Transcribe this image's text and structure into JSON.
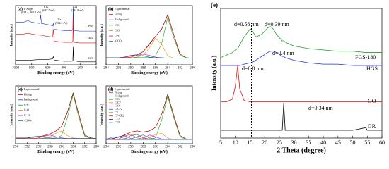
{
  "chart_data": [
    {
      "type": "line",
      "label": "(a)",
      "xlabel": "Binding energy (eV)",
      "ylabel": "Intensity (a.u.)",
      "xlim": [
        1000,
        0
      ],
      "ylim": [
        0,
        100
      ],
      "xticks": [
        1000,
        800,
        600,
        400,
        200,
        0
      ],
      "annotations": [
        "F Auger",
        "(834.4, 862.1 eV)",
        "F1s",
        "(687.7 eV)",
        "O1s",
        "(532.3 eV)",
        "C1s",
        "(284.8 eV)"
      ],
      "x": [
        1000,
        900,
        862,
        834,
        800,
        700,
        688,
        680,
        600,
        540,
        532,
        520,
        400,
        300,
        290,
        285,
        280,
        200,
        100,
        0
      ],
      "series": [
        {
          "name": "FGS",
          "color": "#1f2fd8",
          "values": [
            72,
            72,
            74,
            74,
            72,
            70,
            84,
            70,
            68,
            66,
            70,
            60,
            58,
            58,
            60,
            97,
            58,
            57,
            57,
            57
          ]
        },
        {
          "name": "HGS",
          "color": "#e01010",
          "values": [
            52,
            52,
            53,
            53,
            52,
            50,
            50,
            50,
            48,
            47,
            60,
            40,
            38,
            38,
            40,
            80,
            38,
            37,
            37,
            37
          ]
        },
        {
          "name": "GO",
          "color": "#000000",
          "values": [
            8,
            8,
            8,
            8,
            8,
            9,
            9,
            9,
            9,
            10,
            14,
            8,
            6,
            6,
            7,
            30,
            7,
            5,
            5,
            5
          ]
        }
      ]
    },
    {
      "type": "line",
      "label": "(b)",
      "xlabel": "Binding energy (eV)",
      "ylabel": "Intensity (a.u.)",
      "legend": true,
      "xlim": [
        294,
        280
      ],
      "ylim": [
        0,
        100
      ],
      "xticks": [
        294,
        292,
        290,
        288,
        286,
        284,
        282,
        280
      ],
      "x": [
        294,
        293,
        292,
        291,
        290,
        289,
        288,
        287,
        286,
        285,
        284,
        283,
        282,
        281,
        280
      ],
      "series": [
        {
          "name": "Experimental",
          "color": "#000000",
          "values": [
            12,
            12,
            12,
            13,
            15,
            17,
            22,
            35,
            48,
            60,
            85,
            50,
            18,
            12,
            11
          ]
        },
        {
          "name": "Fitting",
          "color": "#e01010",
          "values": [
            12,
            12,
            12,
            13,
            15,
            17,
            22,
            34,
            48,
            60,
            84,
            50,
            18,
            12,
            11
          ]
        },
        {
          "name": "Background",
          "color": "#1f2fd8",
          "values": [
            12,
            12,
            12,
            12,
            12,
            12,
            12,
            12,
            12,
            11,
            11,
            11,
            11,
            11,
            11
          ]
        },
        {
          "name": "C-C",
          "color": "#10a010",
          "values": [
            12,
            12,
            12,
            12,
            12,
            12,
            12,
            12,
            15,
            35,
            80,
            45,
            16,
            12,
            11
          ]
        },
        {
          "name": "C-O",
          "color": "#ff8000",
          "values": [
            12,
            12,
            12,
            12,
            12,
            13,
            16,
            28,
            45,
            35,
            15,
            11,
            11,
            11,
            11
          ]
        },
        {
          "name": "C=O",
          "color": "#d000d0",
          "values": [
            12,
            12,
            12,
            12,
            13,
            16,
            18,
            16,
            13,
            12,
            11,
            11,
            11,
            11,
            11
          ]
        },
        {
          "name": "-COO-",
          "color": "#008080",
          "values": [
            12,
            12,
            12,
            13,
            16,
            17,
            15,
            13,
            12,
            12,
            11,
            11,
            11,
            11,
            11
          ]
        }
      ]
    },
    {
      "type": "line",
      "label": "(c)",
      "xlabel": "Binding energy (eV)",
      "ylabel": "Intensity (a.u.)",
      "legend": true,
      "xlim": [
        294,
        280
      ],
      "ylim": [
        0,
        100
      ],
      "xticks": [
        294,
        292,
        290,
        288,
        286,
        284,
        282,
        280
      ],
      "x": [
        294,
        293,
        292,
        291,
        290,
        289,
        288,
        287,
        286,
        285,
        284,
        283,
        282,
        281,
        280
      ],
      "series": [
        {
          "name": "Experimental",
          "color": "#000000",
          "values": [
            10,
            10,
            10,
            11,
            12,
            14,
            17,
            22,
            30,
            55,
            88,
            50,
            15,
            10,
            9
          ]
        },
        {
          "name": "Fitting",
          "color": "#e01010",
          "values": [
            10,
            10,
            10,
            11,
            12,
            14,
            17,
            22,
            30,
            54,
            87,
            50,
            15,
            10,
            9
          ]
        },
        {
          "name": "Background",
          "color": "#1f2fd8",
          "values": [
            9,
            9,
            9,
            9,
            9,
            9,
            9,
            9,
            9,
            9,
            9,
            9,
            9,
            9,
            9
          ]
        },
        {
          "name": "C-C",
          "color": "#10a010",
          "values": [
            9,
            9,
            9,
            9,
            9,
            9,
            9,
            10,
            14,
            45,
            85,
            45,
            13,
            9,
            9
          ]
        },
        {
          "name": "C-O",
          "color": "#ff8000",
          "values": [
            9,
            9,
            9,
            9,
            9,
            10,
            12,
            18,
            22,
            14,
            10,
            9,
            9,
            9,
            9
          ]
        },
        {
          "name": "C=O",
          "color": "#d000d0",
          "values": [
            9,
            9,
            9,
            9,
            10,
            13,
            15,
            12,
            10,
            9,
            9,
            9,
            9,
            9,
            9
          ]
        },
        {
          "name": "-COO-",
          "color": "#008080",
          "values": [
            9,
            9,
            10,
            12,
            13,
            11,
            10,
            9,
            9,
            9,
            9,
            9,
            9,
            9,
            9
          ]
        }
      ]
    },
    {
      "type": "line",
      "label": "(d)",
      "xlabel": "Binding energy (eV)",
      "ylabel": "Intensity (a.u.)",
      "legend": true,
      "xlim": [
        294,
        280
      ],
      "ylim": [
        0,
        100
      ],
      "xticks": [
        294,
        292,
        290,
        288,
        286,
        284,
        282,
        280
      ],
      "x": [
        294,
        293,
        292,
        291,
        290,
        289,
        288,
        287,
        286,
        285,
        284,
        283,
        282,
        281,
        280
      ],
      "series": [
        {
          "name": "Experimental",
          "color": "#000000",
          "values": [
            8,
            9,
            11,
            15,
            20,
            22,
            20,
            22,
            28,
            50,
            86,
            48,
            14,
            8,
            7
          ]
        },
        {
          "name": "Fitting",
          "color": "#e01010",
          "values": [
            8,
            9,
            11,
            15,
            20,
            22,
            20,
            22,
            28,
            50,
            85,
            48,
            14,
            8,
            7
          ]
        },
        {
          "name": "Background",
          "color": "#1f2fd8",
          "values": [
            7,
            7,
            7,
            7,
            7,
            7,
            7,
            7,
            7,
            7,
            7,
            7,
            7,
            7,
            7
          ]
        },
        {
          "name": "C-C",
          "color": "#10a010",
          "values": [
            7,
            7,
            7,
            7,
            7,
            7,
            7,
            7,
            10,
            40,
            82,
            44,
            12,
            7,
            7
          ]
        },
        {
          "name": "C-CF",
          "color": "#ff8000",
          "values": [
            7,
            7,
            7,
            7,
            7,
            7,
            7,
            9,
            16,
            18,
            10,
            7,
            7,
            7,
            7
          ]
        },
        {
          "name": "C-O",
          "color": "#d000d0",
          "values": [
            7,
            7,
            7,
            7,
            7,
            7,
            9,
            15,
            12,
            8,
            7,
            7,
            7,
            7,
            7
          ]
        },
        {
          "name": "C-CF2",
          "color": "#008080",
          "values": [
            7,
            7,
            7,
            7,
            8,
            12,
            15,
            10,
            8,
            7,
            7,
            7,
            7,
            7,
            7
          ]
        },
        {
          "name": "CF",
          "color": "#c00040",
          "values": [
            7,
            7,
            7,
            8,
            14,
            16,
            10,
            8,
            7,
            7,
            7,
            7,
            7,
            7,
            7
          ]
        },
        {
          "name": "CF-CF2",
          "color": "#806000",
          "values": [
            7,
            7,
            8,
            13,
            16,
            10,
            8,
            7,
            7,
            7,
            7,
            7,
            7,
            7,
            7
          ]
        },
        {
          "name": "CF2",
          "color": "#6000c0",
          "values": [
            7,
            8,
            12,
            14,
            9,
            7,
            7,
            7,
            7,
            7,
            7,
            7,
            7,
            7,
            7
          ]
        },
        {
          "name": "CF3",
          "color": "#0080ff",
          "values": [
            8,
            11,
            12,
            9,
            7,
            7,
            7,
            7,
            7,
            7,
            7,
            7,
            7,
            7,
            7
          ]
        }
      ]
    },
    {
      "type": "line",
      "label": "(e)",
      "xlabel": "2 Theta (degree)",
      "ylabel": "Intensity (a.u.)",
      "xlim": [
        5,
        60
      ],
      "ylim": [
        0,
        100
      ],
      "xticks": [
        5,
        10,
        15,
        20,
        25,
        30,
        35,
        40,
        45,
        50,
        55,
        60
      ],
      "vline": 15.5,
      "annotations": [
        "d=0.56 nm",
        "d=0.39 nm",
        "d=0.4 nm",
        "d=0.8 nm",
        "d=0.34 nm"
      ],
      "x": [
        5,
        7,
        9,
        10,
        10.8,
        11.5,
        13,
        15,
        15.5,
        17,
        19,
        21,
        22,
        23,
        24,
        26,
        26.5,
        27,
        30,
        35,
        40,
        45,
        50,
        54.5,
        55,
        60
      ],
      "series": [
        {
          "name": "FGS-180",
          "color": "#22a022",
          "values": [
            62,
            64,
            66,
            68,
            69,
            72,
            78,
            84,
            84,
            78,
            80,
            85,
            86,
            84,
            80,
            75,
            75,
            74,
            71,
            69,
            68,
            67,
            67,
            66,
            66,
            66
          ]
        },
        {
          "name": "HGS",
          "color": "#1f2fd8",
          "values": [
            56,
            56,
            56,
            56,
            56,
            56,
            57,
            58,
            58,
            60,
            63,
            66,
            67,
            67,
            66,
            63,
            63,
            62,
            60,
            58,
            57,
            57,
            56,
            56,
            56,
            56
          ]
        },
        {
          "name": "GO",
          "color": "#e01010",
          "values": [
            28,
            28,
            30,
            40,
            56,
            38,
            29,
            28,
            28,
            28,
            28,
            28,
            28,
            28,
            28,
            28,
            28,
            28,
            28,
            28,
            28,
            28,
            28,
            28,
            28,
            28
          ]
        },
        {
          "name": "GR",
          "color": "#000000",
          "values": [
            6,
            6,
            6,
            6,
            6,
            6,
            6,
            6,
            6,
            6,
            6,
            6,
            6,
            6,
            6,
            6,
            27,
            6,
            6,
            6,
            6,
            6,
            6,
            8,
            6,
            6
          ]
        }
      ]
    }
  ]
}
